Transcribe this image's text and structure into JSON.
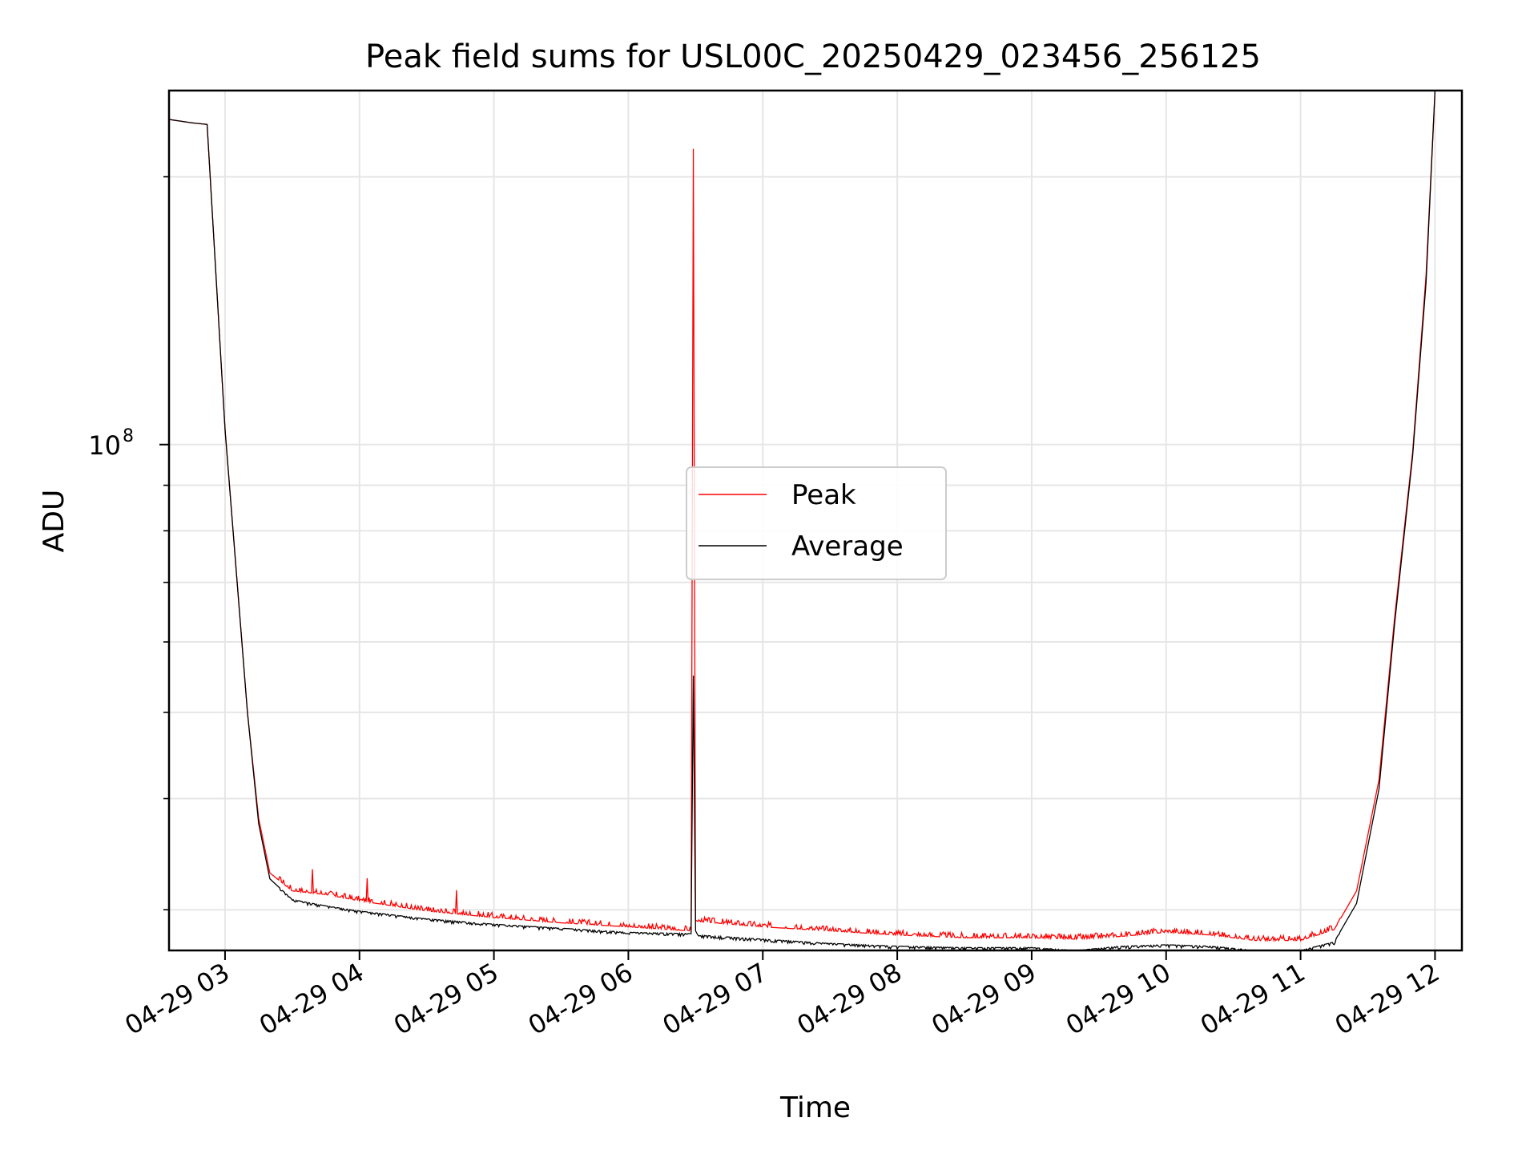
{
  "chart_data": {
    "type": "line",
    "title": "Peak field sums for USL00C_20250429_023456_256125",
    "xlabel": "Time",
    "ylabel": "ADU",
    "x_unit": "time (hours of 2025-04-29)",
    "xlim": [
      "02:35",
      "12:12"
    ],
    "yscale": "log",
    "ylim": [
      27000000,
      250000000
    ],
    "grid": true,
    "legend_position": "center",
    "x_ticks": [
      "04-29 03",
      "04-29 04",
      "04-29 05",
      "04-29 06",
      "04-29 07",
      "04-29 08",
      "04-29 09",
      "04-29 10",
      "04-29 11",
      "04-29 12"
    ],
    "y_ticks": [
      {
        "value": 100000000,
        "base": "10",
        "exponent": "8"
      }
    ],
    "series": [
      {
        "name": "Peak",
        "color": "#ff0000",
        "x": [
          "02:35",
          "02:45",
          "02:52",
          "03:00",
          "03:10",
          "03:15",
          "03:20",
          "03:30",
          "03:45",
          "04:00",
          "04:30",
          "05:00",
          "05:30",
          "06:00",
          "06:28",
          "06:29",
          "06:30",
          "06:31",
          "07:00",
          "07:30",
          "08:00",
          "08:30",
          "09:00",
          "09:20",
          "09:40",
          "10:00",
          "10:20",
          "10:40",
          "11:00",
          "11:15",
          "11:25",
          "11:35",
          "11:42",
          "11:50",
          "11:56",
          "12:00"
        ],
        "y": [
          232000000,
          230000000,
          229000000,
          104000000,
          50000000,
          38000000,
          33000000,
          31500000,
          31200000,
          30700000,
          29900000,
          29400000,
          29000000,
          28700000,
          28400000,
          215000000,
          29200000,
          29100000,
          28700000,
          28400000,
          28100000,
          27900000,
          27900000,
          27800000,
          28000000,
          28300000,
          28100000,
          27700000,
          27700000,
          28500000,
          31500000,
          42000000,
          64000000,
          98000000,
          155000000,
          250000000
        ]
      },
      {
        "name": "Average",
        "color": "#000000",
        "x": [
          "02:35",
          "02:45",
          "02:52",
          "03:00",
          "03:10",
          "03:15",
          "03:20",
          "03:30",
          "03:45",
          "04:00",
          "04:30",
          "05:00",
          "05:30",
          "06:00",
          "06:28",
          "06:29",
          "06:30",
          "06:31",
          "07:00",
          "07:30",
          "08:00",
          "08:30",
          "09:00",
          "09:20",
          "09:40",
          "10:00",
          "10:20",
          "10:40",
          "11:00",
          "11:15",
          "11:25",
          "11:35",
          "11:42",
          "11:50",
          "11:56",
          "12:00"
        ],
        "y": [
          232000000,
          230000000,
          229000000,
          104000000,
          50000000,
          37500000,
          32500000,
          30800000,
          30300000,
          29900000,
          29300000,
          28900000,
          28600000,
          28300000,
          28200000,
          55000000,
          28400000,
          28100000,
          27800000,
          27500000,
          27300000,
          27200000,
          27200000,
          27000000,
          27300000,
          27400000,
          27300000,
          27000000,
          27000000,
          27600000,
          30500000,
          41000000,
          63000000,
          97000000,
          152000000,
          250000000
        ]
      }
    ]
  }
}
